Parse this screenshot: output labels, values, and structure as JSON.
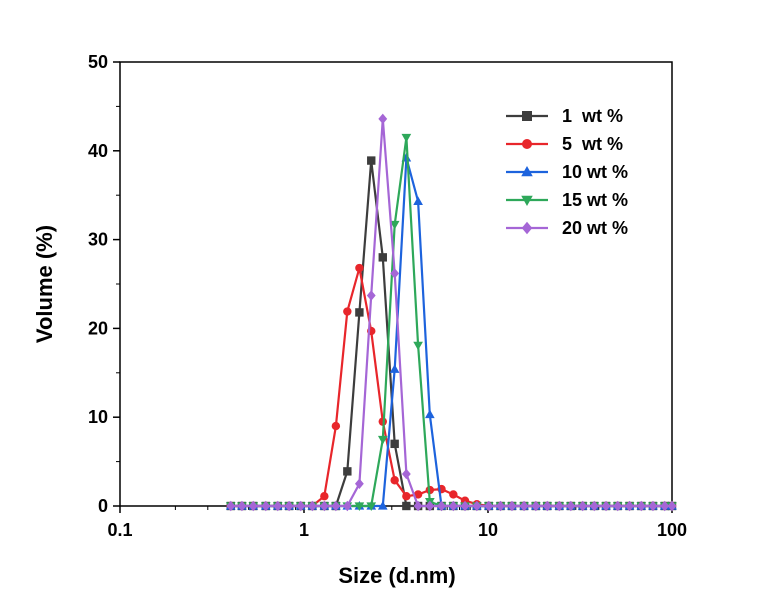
{
  "chart_data": {
    "type": "line",
    "title": "",
    "xlabel": "Size (d.nm)",
    "ylabel": "Volume (%)",
    "xscale": "log",
    "xlim": [
      0.1,
      100
    ],
    "ylim": [
      0,
      50
    ],
    "xticks": [
      {
        "value": 0.1,
        "label": "0.1"
      },
      {
        "value": 1,
        "label": "1"
      },
      {
        "value": 10,
        "label": "10"
      },
      {
        "value": 100,
        "label": "100"
      }
    ],
    "yticks": [
      {
        "value": 0,
        "label": "0"
      },
      {
        "value": 10,
        "label": "10"
      },
      {
        "value": 20,
        "label": "20"
      },
      {
        "value": 30,
        "label": "30"
      },
      {
        "value": 40,
        "label": "40"
      },
      {
        "value": 50,
        "label": "50"
      }
    ],
    "grid": false,
    "legend_position": "top-right",
    "series": [
      {
        "name": "1  wt %",
        "color": "#3d3d3d",
        "marker": "square",
        "x": [
          0.4,
          0.46,
          0.53,
          0.62,
          0.72,
          0.83,
          0.96,
          1.11,
          1.29,
          1.49,
          1.72,
          2.0,
          2.32,
          2.68,
          3.11,
          3.6,
          4.17,
          4.83,
          5.59,
          6.48,
          7.5,
          8.7,
          10.1,
          11.7,
          13.5,
          15.7,
          18.2,
          21.0,
          24.4,
          28.2,
          32.7,
          37.8,
          43.8,
          50.7,
          58.8,
          68.1,
          78.8,
          91.3,
          100
        ],
        "y": [
          0,
          0,
          0,
          0,
          0,
          0,
          0,
          0,
          0,
          0,
          3.9,
          21.8,
          38.9,
          28.0,
          7.0,
          0,
          0,
          0,
          0,
          0,
          0,
          0,
          0,
          0,
          0,
          0,
          0,
          0,
          0,
          0,
          0,
          0,
          0,
          0,
          0,
          0,
          0,
          0,
          0
        ]
      },
      {
        "name": "5  wt %",
        "color": "#e8262b",
        "marker": "circle",
        "x": [
          0.4,
          0.46,
          0.53,
          0.62,
          0.72,
          0.83,
          0.96,
          1.11,
          1.29,
          1.49,
          1.72,
          2.0,
          2.32,
          2.68,
          3.11,
          3.6,
          4.17,
          4.83,
          5.59,
          6.48,
          7.5,
          8.7,
          10.1,
          11.7,
          13.5,
          15.7,
          18.2,
          21.0,
          24.4,
          28.2,
          32.7,
          37.8,
          43.8,
          50.7,
          58.8,
          68.1,
          78.8,
          91.3,
          100
        ],
        "y": [
          0,
          0,
          0,
          0,
          0,
          0,
          0,
          0,
          1.1,
          9.0,
          21.9,
          26.8,
          19.7,
          9.5,
          2.9,
          1.1,
          1.3,
          1.8,
          1.9,
          1.3,
          0.6,
          0.2,
          0,
          0,
          0,
          0,
          0,
          0,
          0,
          0,
          0,
          0,
          0,
          0,
          0,
          0,
          0,
          0,
          0
        ]
      },
      {
        "name": "10 wt %",
        "color": "#1d63dd",
        "marker": "triangle-up",
        "x": [
          0.4,
          0.46,
          0.53,
          0.62,
          0.72,
          0.83,
          0.96,
          1.11,
          1.29,
          1.49,
          1.72,
          2.0,
          2.32,
          2.68,
          3.11,
          3.6,
          4.17,
          4.83,
          5.59,
          6.48,
          7.5,
          8.7,
          10.1,
          11.7,
          13.5,
          15.7,
          18.2,
          21.0,
          24.4,
          28.2,
          32.7,
          37.8,
          43.8,
          50.7,
          58.8,
          68.1,
          78.8,
          91.3,
          100
        ],
        "y": [
          0,
          0,
          0,
          0,
          0,
          0,
          0,
          0,
          0,
          0,
          0,
          0,
          0,
          0,
          15.4,
          39.2,
          34.3,
          10.3,
          0,
          0,
          0,
          0,
          0,
          0,
          0,
          0,
          0,
          0,
          0,
          0,
          0,
          0,
          0,
          0,
          0,
          0,
          0,
          0,
          0
        ]
      },
      {
        "name": "15 wt %",
        "color": "#2ea85a",
        "marker": "triangle-down",
        "x": [
          0.4,
          0.46,
          0.53,
          0.62,
          0.72,
          0.83,
          0.96,
          1.11,
          1.29,
          1.49,
          1.72,
          2.0,
          2.32,
          2.68,
          3.11,
          3.6,
          4.17,
          4.83,
          5.59,
          6.48,
          7.5,
          8.7,
          10.1,
          11.7,
          13.5,
          15.7,
          18.2,
          21.0,
          24.4,
          28.2,
          32.7,
          37.8,
          43.8,
          50.7,
          58.8,
          68.1,
          78.8,
          91.3,
          100
        ],
        "y": [
          0,
          0,
          0,
          0,
          0,
          0,
          0,
          0,
          0,
          0,
          0,
          0,
          0,
          7.5,
          31.7,
          41.5,
          18.1,
          0.5,
          0,
          0,
          0,
          0,
          0,
          0,
          0,
          0,
          0,
          0,
          0,
          0,
          0,
          0,
          0,
          0,
          0,
          0,
          0,
          0,
          0
        ]
      },
      {
        "name": "20 wt %",
        "color": "#a566d6",
        "marker": "diamond",
        "x": [
          0.4,
          0.46,
          0.53,
          0.62,
          0.72,
          0.83,
          0.96,
          1.11,
          1.29,
          1.49,
          1.72,
          2.0,
          2.32,
          2.68,
          3.11,
          3.6,
          4.17,
          4.83,
          5.59,
          6.48,
          7.5,
          8.7,
          10.1,
          11.7,
          13.5,
          15.7,
          18.2,
          21.0,
          24.4,
          28.2,
          32.7,
          37.8,
          43.8,
          50.7,
          58.8,
          68.1,
          78.8,
          91.3,
          100
        ],
        "y": [
          0,
          0,
          0,
          0,
          0,
          0,
          0,
          0,
          0,
          0,
          0,
          2.5,
          23.7,
          43.6,
          26.2,
          3.6,
          0,
          0,
          0,
          0,
          0,
          0,
          0,
          0,
          0,
          0,
          0,
          0,
          0,
          0,
          0,
          0,
          0,
          0,
          0,
          0,
          0,
          0,
          0
        ]
      }
    ]
  }
}
